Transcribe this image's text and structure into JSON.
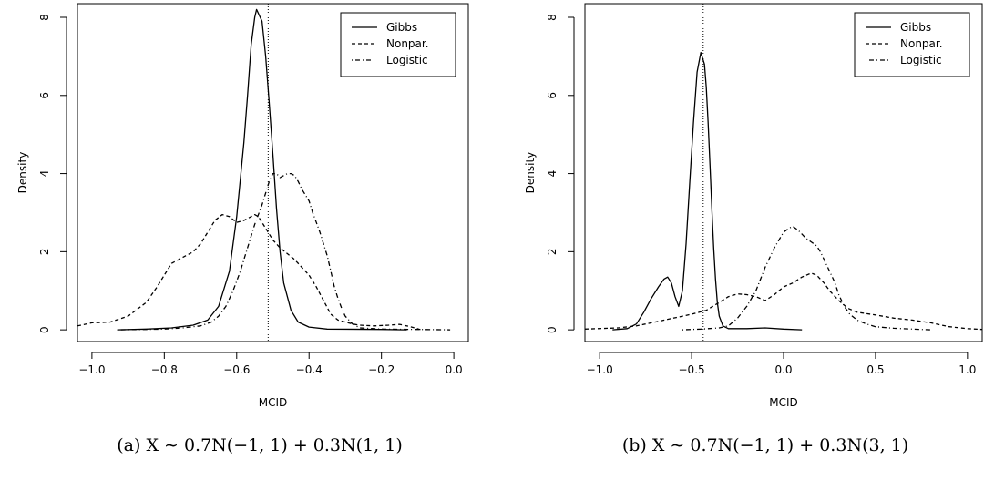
{
  "chart_data": [
    {
      "type": "line",
      "caption": "(a) X ∼ 0.7N(−1, 1) + 0.3N(1, 1)",
      "xlabel": "MCID",
      "ylabel": "Density",
      "xlim": [
        -1.04,
        0.04
      ],
      "ylim": [
        -0.3,
        8.35
      ],
      "xticks": [
        -1.0,
        -0.8,
        -0.6,
        -0.4,
        -0.2,
        0.0
      ],
      "xtick_labels": [
        "−1.0",
        "−0.8",
        "−0.6",
        "−0.4",
        "−0.2",
        "0.0"
      ],
      "yticks": [
        0,
        2,
        4,
        6,
        8
      ],
      "ytick_labels": [
        "0",
        "2",
        "4",
        "6",
        "8"
      ],
      "legend_position": "top-right",
      "reference_line": {
        "x": -0.513,
        "style": "dotted"
      },
      "series": [
        {
          "name": "Gibbs",
          "dash": "solid",
          "x": [
            -0.93,
            -0.85,
            -0.78,
            -0.72,
            -0.68,
            -0.65,
            -0.62,
            -0.6,
            -0.58,
            -0.57,
            -0.56,
            -0.55,
            -0.545,
            -0.53,
            -0.52,
            -0.51,
            -0.5,
            -0.49,
            -0.48,
            -0.47,
            -0.45,
            -0.43,
            -0.4,
            -0.35,
            -0.2,
            -0.13
          ],
          "values": [
            0.0,
            0.02,
            0.05,
            0.12,
            0.25,
            0.6,
            1.5,
            2.9,
            4.8,
            6.0,
            7.3,
            8.0,
            8.2,
            7.9,
            7.0,
            5.8,
            4.5,
            3.1,
            2.0,
            1.2,
            0.5,
            0.2,
            0.07,
            0.02,
            0.01,
            0.0
          ]
        },
        {
          "name": "Nonpar.",
          "dash": "dashed",
          "x": [
            -1.04,
            -1.0,
            -0.95,
            -0.9,
            -0.85,
            -0.82,
            -0.8,
            -0.78,
            -0.75,
            -0.72,
            -0.7,
            -0.68,
            -0.66,
            -0.64,
            -0.62,
            -0.6,
            -0.58,
            -0.56,
            -0.55,
            -0.54,
            -0.52,
            -0.5,
            -0.48,
            -0.46,
            -0.44,
            -0.42,
            -0.4,
            -0.38,
            -0.36,
            -0.34,
            -0.32,
            -0.3,
            -0.28,
            -0.26,
            -0.22,
            -0.18,
            -0.15,
            -0.12,
            -0.09
          ],
          "values": [
            0.1,
            0.18,
            0.2,
            0.35,
            0.7,
            1.1,
            1.4,
            1.7,
            1.85,
            2.0,
            2.2,
            2.5,
            2.8,
            2.95,
            2.9,
            2.75,
            2.8,
            2.9,
            2.95,
            2.9,
            2.6,
            2.3,
            2.1,
            1.95,
            1.8,
            1.6,
            1.4,
            1.1,
            0.75,
            0.4,
            0.25,
            0.2,
            0.15,
            0.12,
            0.1,
            0.12,
            0.14,
            0.08,
            0.0
          ]
        },
        {
          "name": "Logistic",
          "dash": "dotdash",
          "x": [
            -0.93,
            -0.85,
            -0.8,
            -0.75,
            -0.7,
            -0.67,
            -0.65,
            -0.63,
            -0.61,
            -0.59,
            -0.57,
            -0.55,
            -0.53,
            -0.51,
            -0.5,
            -0.49,
            -0.48,
            -0.47,
            -0.46,
            -0.45,
            -0.44,
            -0.43,
            -0.42,
            -0.41,
            -0.4,
            -0.39,
            -0.38,
            -0.37,
            -0.36,
            -0.35,
            -0.34,
            -0.33,
            -0.32,
            -0.31,
            -0.3,
            -0.28,
            -0.26,
            -0.2,
            -0.1,
            -0.01
          ],
          "values": [
            0.0,
            0.01,
            0.02,
            0.05,
            0.1,
            0.2,
            0.35,
            0.6,
            1.0,
            1.5,
            2.1,
            2.7,
            3.2,
            3.8,
            4.0,
            4.0,
            3.9,
            3.95,
            4.0,
            4.0,
            3.95,
            3.8,
            3.6,
            3.45,
            3.3,
            3.0,
            2.75,
            2.5,
            2.2,
            1.9,
            1.5,
            1.1,
            0.8,
            0.55,
            0.35,
            0.15,
            0.05,
            0.02,
            0.01,
            0.0
          ]
        }
      ]
    },
    {
      "type": "line",
      "caption": "(b) X ∼ 0.7N(−1, 1) + 0.3N(3, 1)",
      "xlabel": "MCID",
      "ylabel": "Density",
      "xlim": [
        -1.08,
        1.08
      ],
      "ylim": [
        -0.3,
        8.35
      ],
      "xticks": [
        -1.0,
        -0.5,
        0.0,
        0.5,
        1.0
      ],
      "xtick_labels": [
        "−1.0",
        "−0.5",
        "0.0",
        "0.5",
        "1.0"
      ],
      "yticks": [
        0,
        2,
        4,
        6,
        8
      ],
      "ytick_labels": [
        "0",
        "2",
        "4",
        "6",
        "8"
      ],
      "legend_position": "top-right",
      "reference_line": {
        "x": -0.437,
        "style": "dotted"
      },
      "series": [
        {
          "name": "Gibbs",
          "dash": "solid",
          "x": [
            -0.93,
            -0.85,
            -0.8,
            -0.76,
            -0.72,
            -0.68,
            -0.65,
            -0.63,
            -0.61,
            -0.59,
            -0.57,
            -0.55,
            -0.53,
            -0.51,
            -0.49,
            -0.47,
            -0.45,
            -0.43,
            -0.42,
            -0.41,
            -0.4,
            -0.39,
            -0.38,
            -0.37,
            -0.36,
            -0.35,
            -0.33,
            -0.3,
            -0.2,
            -0.1,
            0.0,
            0.1
          ],
          "values": [
            0.0,
            0.03,
            0.15,
            0.45,
            0.8,
            1.1,
            1.3,
            1.35,
            1.2,
            0.85,
            0.6,
            1.0,
            2.2,
            3.8,
            5.3,
            6.6,
            7.1,
            6.8,
            6.2,
            5.3,
            4.2,
            3.1,
            2.1,
            1.3,
            0.7,
            0.35,
            0.1,
            0.03,
            0.03,
            0.05,
            0.02,
            0.0
          ]
        },
        {
          "name": "Nonpar.",
          "dash": "dashed",
          "x": [
            -1.08,
            -0.9,
            -0.8,
            -0.7,
            -0.6,
            -0.5,
            -0.42,
            -0.35,
            -0.3,
            -0.25,
            -0.2,
            -0.15,
            -0.1,
            -0.05,
            0.0,
            0.05,
            0.1,
            0.15,
            0.18,
            0.22,
            0.25,
            0.3,
            0.35,
            0.4,
            0.5,
            0.6,
            0.7,
            0.8,
            0.9,
            1.0,
            1.08
          ],
          "values": [
            0.02,
            0.05,
            0.1,
            0.2,
            0.3,
            0.4,
            0.5,
            0.7,
            0.85,
            0.92,
            0.9,
            0.85,
            0.75,
            0.9,
            1.1,
            1.2,
            1.35,
            1.45,
            1.4,
            1.2,
            1.0,
            0.75,
            0.55,
            0.45,
            0.38,
            0.3,
            0.25,
            0.18,
            0.08,
            0.03,
            0.01
          ]
        },
        {
          "name": "Logistic",
          "dash": "dotdash",
          "x": [
            -0.55,
            -0.45,
            -0.35,
            -0.3,
            -0.25,
            -0.2,
            -0.15,
            -0.1,
            -0.05,
            0.0,
            0.03,
            0.05,
            0.08,
            0.1,
            0.12,
            0.15,
            0.18,
            0.2,
            0.22,
            0.25,
            0.28,
            0.3,
            0.33,
            0.36,
            0.4,
            0.45,
            0.5,
            0.6,
            0.7,
            0.8
          ],
          "values": [
            0.0,
            0.02,
            0.05,
            0.1,
            0.3,
            0.6,
            1.0,
            1.6,
            2.1,
            2.5,
            2.6,
            2.65,
            2.55,
            2.45,
            2.35,
            2.25,
            2.15,
            2.0,
            1.8,
            1.5,
            1.2,
            0.9,
            0.6,
            0.4,
            0.25,
            0.15,
            0.08,
            0.04,
            0.02,
            0.0
          ]
        }
      ]
    }
  ]
}
